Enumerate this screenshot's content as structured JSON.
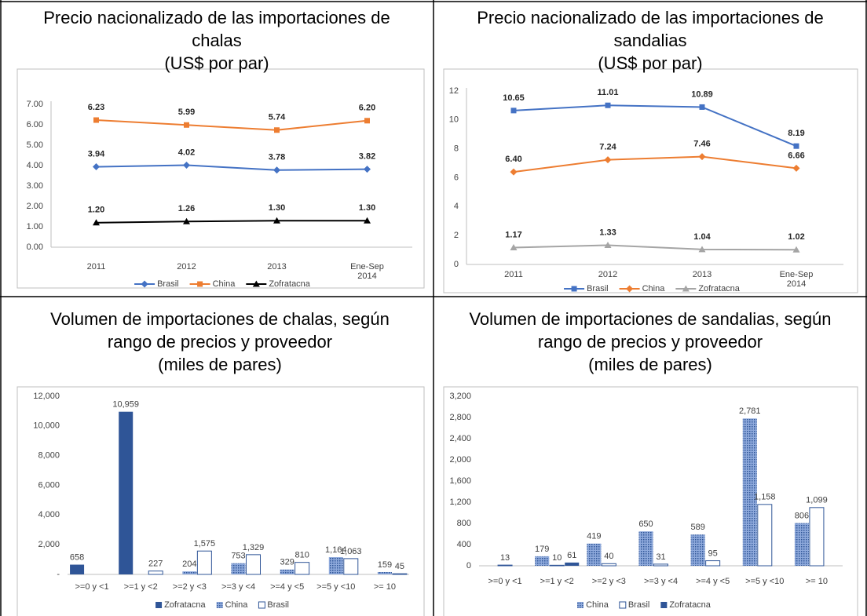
{
  "chart_data": [
    {
      "type": "line",
      "title": "Precio nacionalizado de las importaciones de chalas",
      "subtitle": "(US$ por par)",
      "categories": [
        "2011",
        "2012",
        "2013",
        "Ene-Sep 2014"
      ],
      "series": [
        {
          "name": "Brasil",
          "color": "#4472c4",
          "marker": "diamond",
          "values": [
            3.94,
            4.02,
            3.78,
            3.82
          ],
          "value_labels": [
            "3.94",
            "4.02",
            "3.78",
            "3.82"
          ]
        },
        {
          "name": "China",
          "color": "#ed7d31",
          "marker": "square",
          "values": [
            6.23,
            5.99,
            5.74,
            6.2
          ],
          "value_labels": [
            "6.23",
            "5.99",
            "5.74",
            "6.20"
          ]
        },
        {
          "name": "Zofratacna",
          "color": "#000000",
          "marker": "triangle",
          "values": [
            1.2,
            1.26,
            1.3,
            1.3
          ],
          "value_labels": [
            "1.20",
            "1.26",
            "1.30",
            "1.30"
          ]
        }
      ],
      "ylim": [
        0,
        7
      ],
      "yticks": [
        {
          "value": 0,
          "label": "0.00"
        },
        {
          "value": 1,
          "label": "1.00"
        },
        {
          "value": 2,
          "label": "2.00"
        },
        {
          "value": 3,
          "label": "3.00"
        },
        {
          "value": 4,
          "label": "4.00"
        },
        {
          "value": 5,
          "label": "5.00"
        },
        {
          "value": 6,
          "label": "6.00"
        },
        {
          "value": 7,
          "label": "7.00"
        }
      ],
      "grid": false,
      "legend": "bottom"
    },
    {
      "type": "line",
      "title": "Precio nacionalizado de las importaciones de sandalias",
      "subtitle": "(US$ por par)",
      "categories": [
        "2011",
        "2012",
        "2013",
        "Ene-Sep 2014"
      ],
      "series": [
        {
          "name": "Brasil",
          "color": "#4472c4",
          "marker": "square",
          "values": [
            10.65,
            11.01,
            10.89,
            8.19
          ],
          "value_labels": [
            "10.65",
            "11.01",
            "10.89",
            "8.19"
          ]
        },
        {
          "name": "China",
          "color": "#ed7d31",
          "marker": "diamond",
          "values": [
            6.4,
            7.24,
            7.46,
            6.66
          ],
          "value_labels": [
            "6.40",
            "7.24",
            "7.46",
            "6.66"
          ]
        },
        {
          "name": "Zofratacna",
          "color": "#a5a5a5",
          "marker": "triangle",
          "values": [
            1.17,
            1.33,
            1.04,
            1.02
          ],
          "value_labels": [
            "1.17",
            "1.33",
            "1.04",
            "1.02"
          ]
        }
      ],
      "ylim": [
        0,
        12
      ],
      "yticks": [
        0,
        2,
        4,
        6,
        8,
        10,
        12
      ],
      "grid": false,
      "legend": "bottom"
    },
    {
      "type": "bar",
      "title": "Volumen de importaciones de chalas, según rango de precios y proveedor",
      "subtitle": "(miles de pares)",
      "categories": [
        ">=0 y <1",
        ">=1 y <2",
        ">=2 y <3",
        ">=3 y <4",
        ">=4 y <5",
        ">=5 y <10",
        ">= 10"
      ],
      "series": [
        {
          "name": "Zofratacna",
          "color": "#2f5597",
          "style": "solid",
          "values": [
            658,
            10959,
            null,
            null,
            null,
            null,
            null
          ],
          "value_labels": [
            "658",
            "10,959",
            null,
            null,
            null,
            null,
            null
          ]
        },
        {
          "name": "China",
          "color": "#2f5597",
          "style": "dotted",
          "values": [
            null,
            null,
            204,
            753,
            329,
            1164,
            159
          ],
          "value_labels": [
            null,
            null,
            "204",
            "753",
            "329",
            "1,164",
            "159"
          ]
        },
        {
          "name": "Brasil",
          "color": "#2f5597",
          "style": "outline",
          "values": [
            null,
            227,
            1575,
            1329,
            810,
            1063,
            45
          ],
          "value_labels": [
            null,
            "227",
            "1,575",
            "1,329",
            "810",
            "1,063",
            "45"
          ]
        }
      ],
      "ylim": [
        0,
        12000
      ],
      "yticks": [
        {
          "value": 0,
          "label": "-"
        },
        {
          "value": 2000,
          "label": "2,000"
        },
        {
          "value": 4000,
          "label": "4,000"
        },
        {
          "value": 6000,
          "label": "6,000"
        },
        {
          "value": 8000,
          "label": "8,000"
        },
        {
          "value": 10000,
          "label": "10,000"
        },
        {
          "value": 12000,
          "label": "12,000"
        }
      ],
      "grid": false,
      "legend": "bottom"
    },
    {
      "type": "bar",
      "title": "Volumen de importaciones de sandalias, según rango de precios y proveedor",
      "subtitle": "(miles de pares)",
      "categories": [
        ">=0 y <1",
        ">=1 y <2",
        ">=2 y <3",
        ">=3 y <4",
        ">=4 y <5",
        ">=5 y <10",
        ">= 10"
      ],
      "series": [
        {
          "name": "China",
          "color": "#2f5597",
          "style": "dotted",
          "values": [
            null,
            179,
            419,
            650,
            589,
            2781,
            806
          ],
          "value_labels": [
            null,
            "179",
            "419",
            "650",
            "589",
            "2,781",
            "806"
          ]
        },
        {
          "name": "Brasil",
          "color": "#2f5597",
          "style": "outline",
          "values": [
            13,
            10,
            40,
            31,
            95,
            1158,
            1099
          ],
          "value_labels": [
            "13",
            "10",
            "40",
            "31",
            "95",
            "1,158",
            "1,099"
          ]
        },
        {
          "name": "Zofratacna",
          "color": "#2f5597",
          "style": "solid",
          "values": [
            null,
            61,
            null,
            null,
            null,
            null,
            null
          ],
          "value_labels": [
            null,
            "61",
            null,
            null,
            null,
            null,
            null
          ]
        }
      ],
      "ylim": [
        0,
        3200
      ],
      "yticks": [
        0,
        400,
        800,
        {
          "value": 1200,
          "label": "1,200"
        },
        {
          "value": 1600,
          "label": "1,600"
        },
        {
          "value": 2000,
          "label": "2,000"
        },
        {
          "value": 2400,
          "label": "2,400"
        },
        {
          "value": 2800,
          "label": "2,800"
        },
        {
          "value": 3200,
          "label": "3,200"
        }
      ],
      "grid": false,
      "legend": "bottom"
    }
  ]
}
